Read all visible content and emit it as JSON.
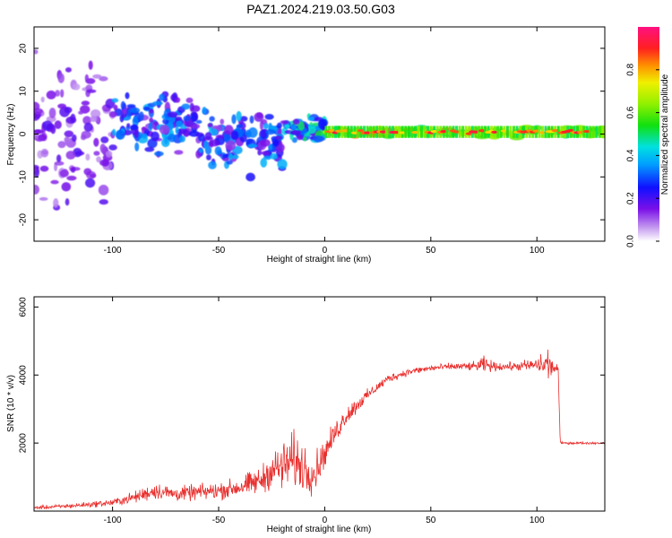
{
  "page_title": "PAZ1.2024.219.03.50.G03",
  "colors": {
    "snr_line": "#e8302e",
    "axis": "#000000",
    "spectrum_low": "#d8b8f4",
    "spectrum_mid": "#7a10e8",
    "spectrum_high": "#ff2020"
  },
  "chart_data": [
    {
      "type": "heatmap",
      "title": "",
      "xlabel": "Height of straight line (km)",
      "ylabel": "Frequency (Hz)",
      "xlim": [
        -137,
        132
      ],
      "ylim": [
        -25,
        25
      ],
      "xticks": [
        -100,
        -50,
        0,
        50,
        100
      ],
      "xtick_labels": [
        "-100",
        "-50",
        "0",
        "50",
        "100"
      ],
      "yticks": [
        -20,
        -10,
        0,
        10,
        20
      ],
      "ytick_labels": [
        "-20",
        "-10",
        "0",
        "10",
        "20"
      ],
      "colorbar": {
        "label": "Normalized spectral amplitude",
        "range": [
          0.0,
          1.0
        ],
        "ticks": [
          0.0,
          0.2,
          0.4,
          0.6,
          0.8
        ],
        "tick_labels": [
          "0.0",
          "0.2",
          "0.4",
          "0.6",
          "0.8"
        ],
        "colormap": "rainbow"
      },
      "structure": [
        {
          "x_range": [
            -137,
            -100
          ],
          "freq_spread": 25,
          "amplitude": 0.15
        },
        {
          "x_range": [
            -100,
            -60
          ],
          "freq_center": 3,
          "freq_spread": 9,
          "amplitude": 0.3
        },
        {
          "x_range": [
            -60,
            -20
          ],
          "freq_center": -2,
          "freq_spread": 10,
          "amplitude": 0.3
        },
        {
          "x_range": [
            -20,
            0
          ],
          "freq_center": 1,
          "freq_spread": 4,
          "amplitude": 0.4
        },
        {
          "x_range": [
            0,
            132
          ],
          "freq_center": 0.5,
          "freq_spread": 1.5,
          "amplitude": 0.8
        }
      ]
    },
    {
      "type": "line",
      "title": "",
      "xlabel": "Height of straight line (km)",
      "ylabel": "SNR (10 * v/v)",
      "xlim": [
        -137,
        132
      ],
      "ylim": [
        0,
        6300
      ],
      "xticks": [
        -100,
        -50,
        0,
        50,
        100
      ],
      "xtick_labels": [
        "-100",
        "-50",
        "0",
        "50",
        "100"
      ],
      "yticks": [
        2000,
        4000,
        6000
      ],
      "ytick_labels": [
        "2000",
        "4000",
        "6000"
      ],
      "series": [
        {
          "x": [
            -137,
            -120,
            -100,
            -90,
            -80,
            -70,
            -60,
            -50,
            -40,
            -30,
            -25,
            -20,
            -15,
            -10,
            -5,
            0,
            5,
            10,
            20,
            30,
            40,
            50,
            60,
            70,
            75,
            80,
            90,
            100,
            105,
            108,
            110,
            111,
            120,
            132
          ],
          "y": [
            100,
            150,
            250,
            400,
            600,
            500,
            550,
            600,
            700,
            900,
            1200,
            1300,
            1500,
            1300,
            1100,
            1700,
            2300,
            2800,
            3400,
            3900,
            4100,
            4200,
            4250,
            4250,
            4300,
            4250,
            4250,
            4300,
            4300,
            4200,
            4200,
            2000,
            2000,
            2000
          ],
          "noise": [
            60,
            80,
            120,
            200,
            300,
            250,
            280,
            300,
            350,
            500,
            600,
            900,
            1000,
            900,
            700,
            500,
            400,
            350,
            200,
            150,
            120,
            120,
            120,
            150,
            300,
            150,
            150,
            250,
            700,
            150,
            150,
            40,
            40,
            40
          ]
        }
      ]
    }
  ]
}
